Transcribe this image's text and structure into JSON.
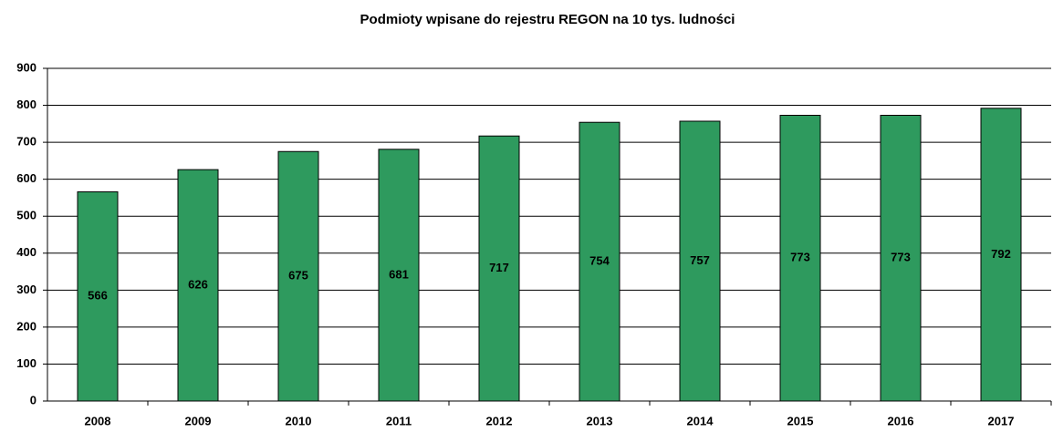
{
  "chart_data": {
    "type": "bar",
    "title": "Podmioty wpisane do rejestru REGON na 10 tys. ludności",
    "categories": [
      "2008",
      "2009",
      "2010",
      "2011",
      "2012",
      "2013",
      "2014",
      "2015",
      "2016",
      "2017"
    ],
    "values": [
      566,
      626,
      675,
      681,
      717,
      754,
      757,
      773,
      773,
      792
    ],
    "color": "#2e9a5e",
    "ylim": [
      0,
      900
    ],
    "yticks": [
      0,
      100,
      200,
      300,
      400,
      500,
      600,
      700,
      800,
      900
    ],
    "grid": true
  }
}
